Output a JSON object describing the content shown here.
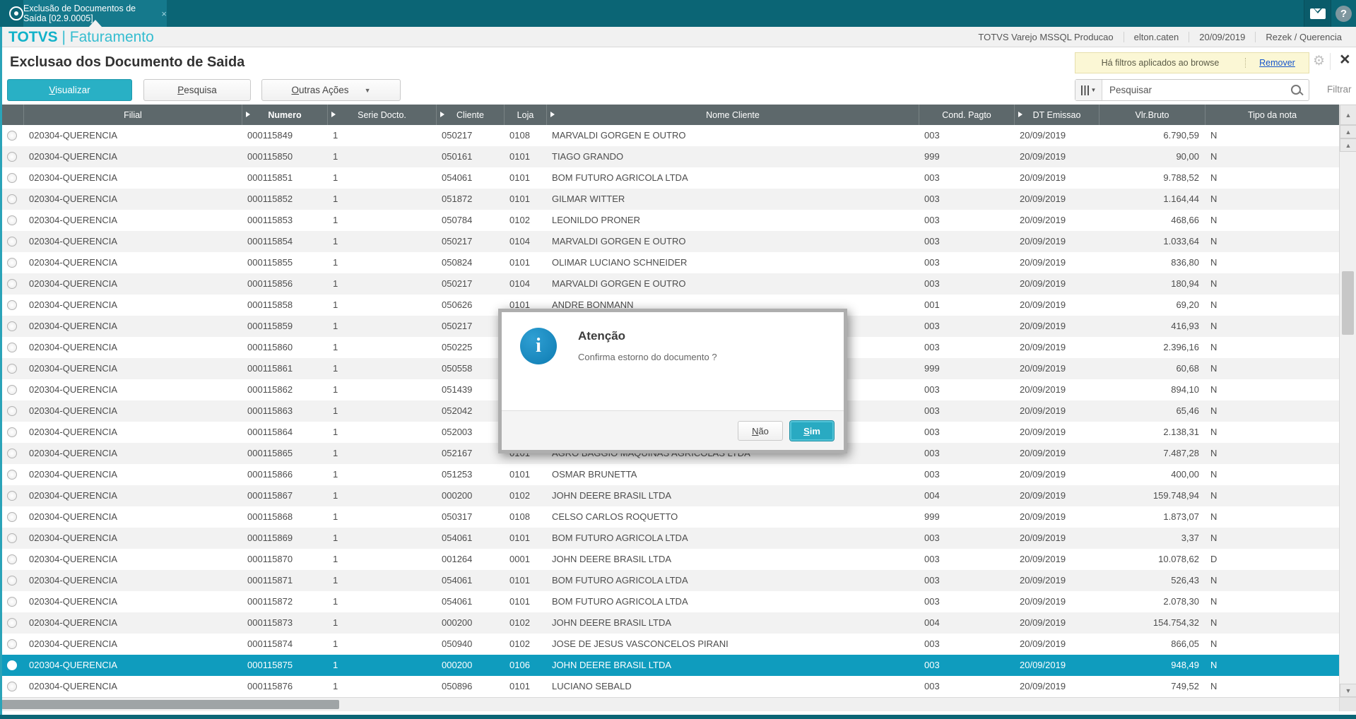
{
  "topbar": {
    "tab_title": "Exclusão de Documentos de Saída [02.9.0005]",
    "tab_close": "×"
  },
  "header": {
    "brand": "TOTVS",
    "separator": "| ",
    "module": "Faturamento",
    "environment": "TOTVS Varejo MSSQL Producao",
    "user": "elton.caten",
    "date": "20/09/2019",
    "company": "Rezek / Querencia"
  },
  "page": {
    "title": "Exclusao dos Documento de Saida",
    "filter_notice": "Há filtros aplicados ao browse",
    "remove_link": "Remover",
    "close_label": "×"
  },
  "toolbar": {
    "visualizar": {
      "key": "V",
      "rest": "isualizar"
    },
    "pesquisa": {
      "key": "P",
      "rest": "esquisa"
    },
    "outras_acoes": {
      "key": "O",
      "rest": "utras Ações"
    },
    "search_placeholder": "Pesquisar",
    "filtrar_label": "Filtrar"
  },
  "table": {
    "columns": [
      "",
      "Filial",
      "Numero",
      "Serie Docto.",
      "Cliente",
      "Loja",
      "Nome Cliente",
      "Cond. Pagto",
      "DT Emissao",
      "Vlr.Bruto",
      "Tipo da nota"
    ],
    "sorted_column": "Numero",
    "rows": [
      {
        "filial": "020304-QUERENCIA",
        "numero": "000115849",
        "serie": "1",
        "cliente": "050217",
        "loja": "0108",
        "nome": "MARVALDI GORGEN E OUTRO",
        "cond": "003",
        "emissao": "20/09/2019",
        "valor": "6.790,59",
        "tipo": "N",
        "selected": false
      },
      {
        "filial": "020304-QUERENCIA",
        "numero": "000115850",
        "serie": "1",
        "cliente": "050161",
        "loja": "0101",
        "nome": "TIAGO GRANDO",
        "cond": "999",
        "emissao": "20/09/2019",
        "valor": "90,00",
        "tipo": "N",
        "selected": false
      },
      {
        "filial": "020304-QUERENCIA",
        "numero": "000115851",
        "serie": "1",
        "cliente": "054061",
        "loja": "0101",
        "nome": "BOM FUTURO AGRICOLA LTDA",
        "cond": "003",
        "emissao": "20/09/2019",
        "valor": "9.788,52",
        "tipo": "N",
        "selected": false
      },
      {
        "filial": "020304-QUERENCIA",
        "numero": "000115852",
        "serie": "1",
        "cliente": "051872",
        "loja": "0101",
        "nome": "GILMAR WITTER",
        "cond": "003",
        "emissao": "20/09/2019",
        "valor": "1.164,44",
        "tipo": "N",
        "selected": false
      },
      {
        "filial": "020304-QUERENCIA",
        "numero": "000115853",
        "serie": "1",
        "cliente": "050784",
        "loja": "0102",
        "nome": "LEONILDO PRONER",
        "cond": "003",
        "emissao": "20/09/2019",
        "valor": "468,66",
        "tipo": "N",
        "selected": false
      },
      {
        "filial": "020304-QUERENCIA",
        "numero": "000115854",
        "serie": "1",
        "cliente": "050217",
        "loja": "0104",
        "nome": "MARVALDI GORGEN E OUTRO",
        "cond": "003",
        "emissao": "20/09/2019",
        "valor": "1.033,64",
        "tipo": "N",
        "selected": false
      },
      {
        "filial": "020304-QUERENCIA",
        "numero": "000115855",
        "serie": "1",
        "cliente": "050824",
        "loja": "0101",
        "nome": "OLIMAR LUCIANO SCHNEIDER",
        "cond": "003",
        "emissao": "20/09/2019",
        "valor": "836,80",
        "tipo": "N",
        "selected": false
      },
      {
        "filial": "020304-QUERENCIA",
        "numero": "000115856",
        "serie": "1",
        "cliente": "050217",
        "loja": "0104",
        "nome": "MARVALDI GORGEN E OUTRO",
        "cond": "003",
        "emissao": "20/09/2019",
        "valor": "180,94",
        "tipo": "N",
        "selected": false
      },
      {
        "filial": "020304-QUERENCIA",
        "numero": "000115858",
        "serie": "1",
        "cliente": "050626",
        "loja": "0101",
        "nome": "ANDRE BONMANN",
        "cond": "001",
        "emissao": "20/09/2019",
        "valor": "69,20",
        "tipo": "N",
        "selected": false
      },
      {
        "filial": "020304-QUERENCIA",
        "numero": "000115859",
        "serie": "1",
        "cliente": "050217",
        "loja": "",
        "nome": "",
        "cond": "003",
        "emissao": "20/09/2019",
        "valor": "416,93",
        "tipo": "N",
        "selected": false
      },
      {
        "filial": "020304-QUERENCIA",
        "numero": "000115860",
        "serie": "1",
        "cliente": "050225",
        "loja": "",
        "nome": "",
        "cond": "003",
        "emissao": "20/09/2019",
        "valor": "2.396,16",
        "tipo": "N",
        "selected": false
      },
      {
        "filial": "020304-QUERENCIA",
        "numero": "000115861",
        "serie": "1",
        "cliente": "050558",
        "loja": "",
        "nome": "",
        "cond": "999",
        "emissao": "20/09/2019",
        "valor": "60,68",
        "tipo": "N",
        "selected": false
      },
      {
        "filial": "020304-QUERENCIA",
        "numero": "000115862",
        "serie": "1",
        "cliente": "051439",
        "loja": "",
        "nome": "",
        "cond": "003",
        "emissao": "20/09/2019",
        "valor": "894,10",
        "tipo": "N",
        "selected": false
      },
      {
        "filial": "020304-QUERENCIA",
        "numero": "000115863",
        "serie": "1",
        "cliente": "052042",
        "loja": "",
        "nome": "",
        "cond": "003",
        "emissao": "20/09/2019",
        "valor": "65,46",
        "tipo": "N",
        "selected": false
      },
      {
        "filial": "020304-QUERENCIA",
        "numero": "000115864",
        "serie": "1",
        "cliente": "052003",
        "loja": "",
        "nome": "",
        "cond": "003",
        "emissao": "20/09/2019",
        "valor": "2.138,31",
        "tipo": "N",
        "selected": false
      },
      {
        "filial": "020304-QUERENCIA",
        "numero": "000115865",
        "serie": "1",
        "cliente": "052167",
        "loja": "0101",
        "nome": "AGRO BAGGIO MAQUINAS AGRICOLAS LTDA",
        "cond": "003",
        "emissao": "20/09/2019",
        "valor": "7.487,28",
        "tipo": "N",
        "selected": false
      },
      {
        "filial": "020304-QUERENCIA",
        "numero": "000115866",
        "serie": "1",
        "cliente": "051253",
        "loja": "0101",
        "nome": "OSMAR BRUNETTA",
        "cond": "003",
        "emissao": "20/09/2019",
        "valor": "400,00",
        "tipo": "N",
        "selected": false
      },
      {
        "filial": "020304-QUERENCIA",
        "numero": "000115867",
        "serie": "1",
        "cliente": "000200",
        "loja": "0102",
        "nome": "JOHN DEERE BRASIL LTDA",
        "cond": "004",
        "emissao": "20/09/2019",
        "valor": "159.748,94",
        "tipo": "N",
        "selected": false
      },
      {
        "filial": "020304-QUERENCIA",
        "numero": "000115868",
        "serie": "1",
        "cliente": "050317",
        "loja": "0108",
        "nome": "CELSO CARLOS ROQUETTO",
        "cond": "999",
        "emissao": "20/09/2019",
        "valor": "1.873,07",
        "tipo": "N",
        "selected": false
      },
      {
        "filial": "020304-QUERENCIA",
        "numero": "000115869",
        "serie": "1",
        "cliente": "054061",
        "loja": "0101",
        "nome": "BOM FUTURO AGRICOLA LTDA",
        "cond": "003",
        "emissao": "20/09/2019",
        "valor": "3,37",
        "tipo": "N",
        "selected": false
      },
      {
        "filial": "020304-QUERENCIA",
        "numero": "000115870",
        "serie": "1",
        "cliente": "001264",
        "loja": "0001",
        "nome": "JOHN DEERE BRASIL LTDA",
        "cond": "003",
        "emissao": "20/09/2019",
        "valor": "10.078,62",
        "tipo": "D",
        "selected": false
      },
      {
        "filial": "020304-QUERENCIA",
        "numero": "000115871",
        "serie": "1",
        "cliente": "054061",
        "loja": "0101",
        "nome": "BOM FUTURO AGRICOLA LTDA",
        "cond": "003",
        "emissao": "20/09/2019",
        "valor": "526,43",
        "tipo": "N",
        "selected": false
      },
      {
        "filial": "020304-QUERENCIA",
        "numero": "000115872",
        "serie": "1",
        "cliente": "054061",
        "loja": "0101",
        "nome": "BOM FUTURO AGRICOLA LTDA",
        "cond": "003",
        "emissao": "20/09/2019",
        "valor": "2.078,30",
        "tipo": "N",
        "selected": false
      },
      {
        "filial": "020304-QUERENCIA",
        "numero": "000115873",
        "serie": "1",
        "cliente": "000200",
        "loja": "0102",
        "nome": "JOHN DEERE BRASIL LTDA",
        "cond": "004",
        "emissao": "20/09/2019",
        "valor": "154.754,32",
        "tipo": "N",
        "selected": false
      },
      {
        "filial": "020304-QUERENCIA",
        "numero": "000115874",
        "serie": "1",
        "cliente": "050940",
        "loja": "0102",
        "nome": "JOSE DE JESUS VASCONCELOS PIRANI",
        "cond": "003",
        "emissao": "20/09/2019",
        "valor": "866,05",
        "tipo": "N",
        "selected": false
      },
      {
        "filial": "020304-QUERENCIA",
        "numero": "000115875",
        "serie": "1",
        "cliente": "000200",
        "loja": "0106",
        "nome": "JOHN DEERE BRASIL LTDA",
        "cond": "003",
        "emissao": "20/09/2019",
        "valor": "948,49",
        "tipo": "N",
        "selected": true
      },
      {
        "filial": "020304-QUERENCIA",
        "numero": "000115876",
        "serie": "1",
        "cliente": "050896",
        "loja": "0101",
        "nome": "LUCIANO SEBALD",
        "cond": "003",
        "emissao": "20/09/2019",
        "valor": "749,52",
        "tipo": "N",
        "selected": false
      }
    ]
  },
  "dialog": {
    "title": "Atenção",
    "message": "Confirma estorno do documento ?",
    "no_button": {
      "key": "N",
      "rest": "ão"
    },
    "yes_button": {
      "key": "S",
      "rest": "im"
    }
  },
  "colors": {
    "topbar_teal": "#0b6575",
    "accent_teal": "#29b0c5",
    "selected_row": "#0f9cbe",
    "header_slate": "#5d686b",
    "notice_yellow": "#fbf7d5",
    "link_blue": "#1353cc"
  }
}
